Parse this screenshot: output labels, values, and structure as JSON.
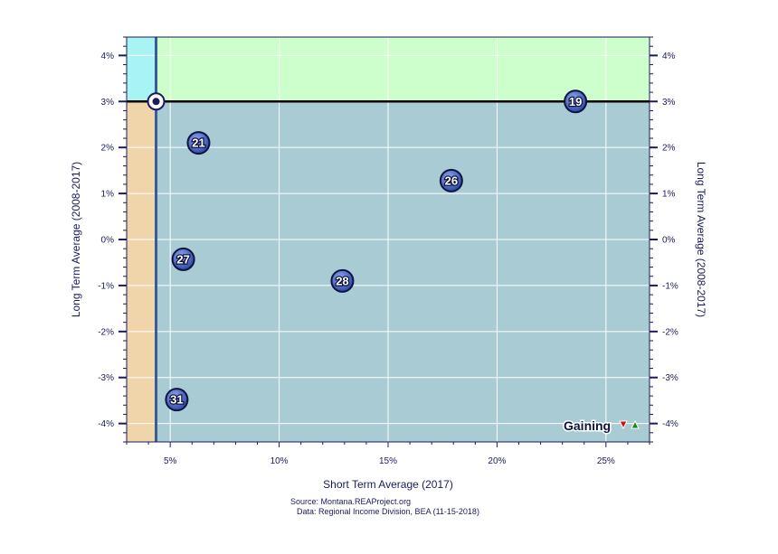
{
  "chart_data": {
    "type": "scatter",
    "xlabel": "Short Term Average (2017)",
    "ylabel_left": "Long Term Average (2008-2017)",
    "ylabel_right": "Long Term Average (2008-2017)",
    "xlim": [
      3.0,
      27.0
    ],
    "ylim": [
      -4.4,
      4.4
    ],
    "x_ticks": [
      5,
      10,
      15,
      20,
      25
    ],
    "x_tick_labels": [
      "5%",
      "10%",
      "15%",
      "20%",
      "25%"
    ],
    "y_ticks": [
      4,
      3,
      2,
      1,
      0,
      -1,
      -2,
      -3,
      -4
    ],
    "y_tick_labels": [
      "4%",
      "3%",
      "2%",
      "1%",
      "0%",
      "-1%",
      "-2%",
      "-3%",
      "-4%"
    ],
    "grid": true,
    "reference": {
      "x": 4.35,
      "y": 3.0
    },
    "quadrant_colors": {
      "top_left": "#a8f4f4",
      "top_right": "#ccffcc",
      "bottom_left": "#f0d4aa",
      "bottom_right": "#a8cbd4"
    },
    "points": [
      {
        "label": "19",
        "x": 23.6,
        "y": 3.0
      },
      {
        "label": "21",
        "x": 6.3,
        "y": 2.1
      },
      {
        "label": "26",
        "x": 17.9,
        "y": 1.28
      },
      {
        "label": "27",
        "x": 5.6,
        "y": -0.43
      },
      {
        "label": "28",
        "x": 12.9,
        "y": -0.9
      },
      {
        "label": "31",
        "x": 5.3,
        "y": -3.48
      }
    ],
    "legend": {
      "text": "Gaining",
      "placement": "bottom-right"
    },
    "source_line": "Source: Montana.REAProject.org",
    "data_line": "Data: Regional Income Division, BEA (11-15-2018)"
  }
}
